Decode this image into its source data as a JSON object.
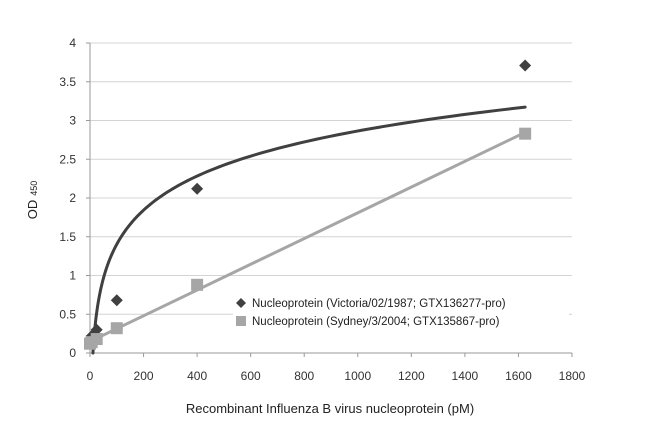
{
  "chart_data": {
    "type": "scatter",
    "xlabel": "Recombinant Influenza B virus nucleoprotein (pM)",
    "ylabel": "OD",
    "ylabel_subscript": "450",
    "xlim": [
      0,
      1800
    ],
    "ylim": [
      0,
      4
    ],
    "xticks": [
      0,
      200,
      400,
      600,
      800,
      1000,
      1200,
      1400,
      1600,
      1800
    ],
    "yticks": [
      0,
      0.5,
      1,
      1.5,
      2,
      2.5,
      3,
      3.5,
      4
    ],
    "ytick_labels": [
      "0",
      "0.5",
      "1",
      "1.5",
      "2",
      "2.5",
      "3",
      "3.5",
      "4"
    ],
    "grid": "horizontal",
    "legend_position": "bottom-right",
    "series": [
      {
        "name": "Nucleoprotein (Victoria/02/1987; GTX136277-pro)",
        "marker": "diamond",
        "color": "#404040",
        "x": [
          0,
          6.3,
          25,
          100,
          400,
          1625
        ],
        "y": [
          0.18,
          0.22,
          0.3,
          0.68,
          2.12,
          3.71
        ],
        "trendline": "logarithmic",
        "trendline_color": "#404040"
      },
      {
        "name": "Nucleoprotein (Sydney/3/2004; GTX135867-pro)",
        "marker": "square",
        "color": "#a6a6a6",
        "x": [
          0,
          6.3,
          25,
          100,
          400,
          1625
        ],
        "y": [
          0.12,
          0.14,
          0.18,
          0.32,
          0.88,
          2.83
        ],
        "trendline": "linear",
        "trendline_color": "#a6a6a6"
      }
    ]
  }
}
